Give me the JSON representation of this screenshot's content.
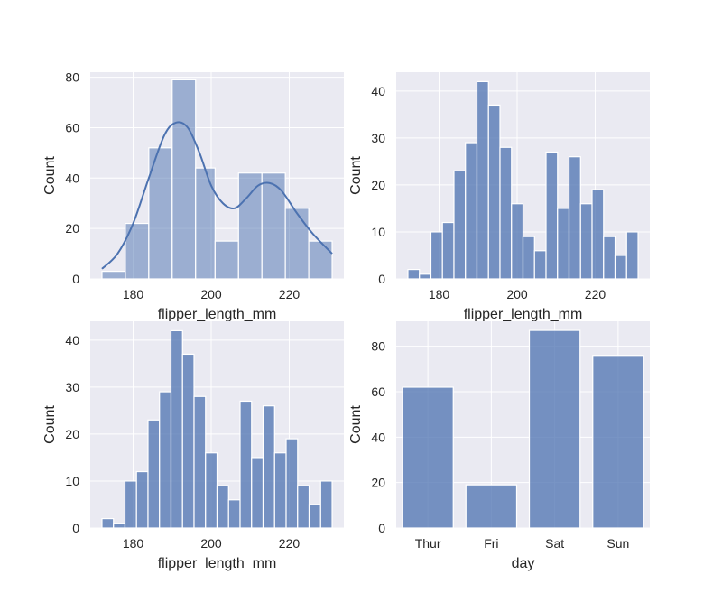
{
  "chart_data": [
    {
      "type": "bar",
      "chart": "histogram",
      "xlabel": "flipper_length_mm",
      "ylabel": "Count",
      "xlim": [
        169,
        234
      ],
      "ylim": [
        0,
        82
      ],
      "xticks": [
        180,
        200,
        220
      ],
      "yticks": [
        0,
        20,
        40,
        60,
        80
      ],
      "bin_edges": [
        172,
        178,
        184,
        190,
        196,
        201,
        207,
        213,
        219,
        225,
        231
      ],
      "values": [
        3,
        22,
        52,
        79,
        44,
        15,
        42,
        42,
        28,
        15
      ],
      "kde": {
        "x": [
          172,
          176,
          180,
          184,
          188,
          191,
          194,
          197,
          200,
          203,
          206,
          209,
          212,
          215,
          218,
          222,
          226,
          231
        ],
        "y": [
          4,
          10,
          22,
          40,
          57,
          62,
          60,
          50,
          37,
          30,
          28,
          32,
          37,
          38,
          35,
          26,
          18,
          10
        ]
      },
      "bar_color": "#4c72b0",
      "bar_opacity": 0.5,
      "kde_color": "#4c72b0",
      "grid": true
    },
    {
      "type": "bar",
      "chart": "histogram",
      "xlabel": "flipper_length_mm",
      "ylabel": "Count",
      "xlim": [
        169,
        234
      ],
      "ylim": [
        0,
        44
      ],
      "xticks": [
        180,
        200,
        220
      ],
      "yticks": [
        0,
        10,
        20,
        30,
        40
      ],
      "bin_edges": [
        172,
        174.95,
        177.9,
        180.85,
        183.8,
        186.75,
        189.7,
        192.65,
        195.6,
        198.55,
        201.5,
        204.45,
        207.4,
        210.35,
        213.3,
        216.25,
        219.2,
        222.15,
        225.1,
        228.05,
        231
      ],
      "values": [
        2,
        1,
        10,
        12,
        23,
        29,
        42,
        37,
        28,
        16,
        9,
        6,
        27,
        15,
        26,
        16,
        19,
        9,
        5,
        10
      ],
      "bar_color": "#4c72b0",
      "bar_opacity": 0.75,
      "grid": true
    },
    {
      "type": "bar",
      "chart": "histogram",
      "xlabel": "flipper_length_mm",
      "ylabel": "Count",
      "xlim": [
        169,
        234
      ],
      "ylim": [
        0,
        44
      ],
      "xticks": [
        180,
        200,
        220
      ],
      "yticks": [
        0,
        10,
        20,
        30,
        40
      ],
      "bin_edges": [
        172,
        174.95,
        177.9,
        180.85,
        183.8,
        186.75,
        189.7,
        192.65,
        195.6,
        198.55,
        201.5,
        204.45,
        207.4,
        210.35,
        213.3,
        216.25,
        219.2,
        222.15,
        225.1,
        228.05,
        231
      ],
      "values": [
        2,
        1,
        10,
        12,
        23,
        29,
        42,
        37,
        28,
        16,
        9,
        6,
        27,
        15,
        26,
        16,
        19,
        9,
        5,
        10
      ],
      "bar_color": "#4c72b0",
      "bar_opacity": 0.75,
      "grid": true
    },
    {
      "type": "bar",
      "chart": "countplot",
      "xlabel": "day",
      "ylabel": "Count",
      "categories": [
        "Thur",
        "Fri",
        "Sat",
        "Sun"
      ],
      "values": [
        62,
        19,
        87,
        76
      ],
      "ylim": [
        0,
        91
      ],
      "yticks": [
        0,
        20,
        40,
        60,
        80
      ],
      "bar_color": "#4c72b0",
      "bar_opacity": 0.75,
      "grid": true
    }
  ]
}
